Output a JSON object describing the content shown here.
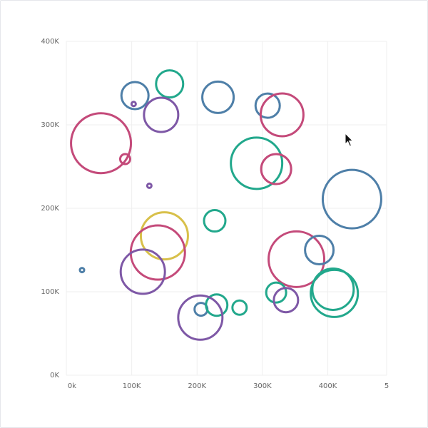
{
  "chart_data": {
    "type": "scatter",
    "title": "",
    "xlabel": "",
    "ylabel": "",
    "xlim": [
      0,
      490000
    ],
    "ylim": [
      0,
      400000
    ],
    "x_ticks": [
      "0k",
      "100K",
      "200K",
      "300K",
      "400K",
      "5"
    ],
    "x_tick_values": [
      0,
      100000,
      200000,
      300000,
      400000,
      490000
    ],
    "y_ticks": [
      "0K",
      "100K",
      "200K",
      "300K",
      "400K"
    ],
    "y_tick_values": [
      0,
      100000,
      200000,
      300000,
      400000
    ],
    "grid": true,
    "colors": {
      "blue": "#4e7fa8",
      "teal": "#22a88c",
      "purple": "#7e58a6",
      "pink": "#c44a7a",
      "yellow": "#d8c04a"
    },
    "points": [
      {
        "x": 105000,
        "y": 335000,
        "size": 19,
        "color": "blue"
      },
      {
        "x": 158000,
        "y": 349000,
        "size": 19,
        "color": "teal"
      },
      {
        "x": 232000,
        "y": 333000,
        "size": 22,
        "color": "blue"
      },
      {
        "x": 145000,
        "y": 312000,
        "size": 24,
        "color": "purple"
      },
      {
        "x": 103000,
        "y": 325000,
        "size": 3,
        "color": "purple"
      },
      {
        "x": 308000,
        "y": 323000,
        "size": 17,
        "color": "blue"
      },
      {
        "x": 330000,
        "y": 312000,
        "size": 30,
        "color": "pink"
      },
      {
        "x": 53000,
        "y": 278000,
        "size": 42,
        "color": "pink"
      },
      {
        "x": 90000,
        "y": 259000,
        "size": 7,
        "color": "pink"
      },
      {
        "x": 127000,
        "y": 227000,
        "size": 3,
        "color": "purple"
      },
      {
        "x": 291000,
        "y": 254000,
        "size": 36,
        "color": "teal"
      },
      {
        "x": 321000,
        "y": 247000,
        "size": 21,
        "color": "pink"
      },
      {
        "x": 437000,
        "y": 211000,
        "size": 41,
        "color": "blue"
      },
      {
        "x": 227000,
        "y": 185000,
        "size": 15,
        "color": "teal"
      },
      {
        "x": 150000,
        "y": 167000,
        "size": 33,
        "color": "yellow"
      },
      {
        "x": 140000,
        "y": 147000,
        "size": 38,
        "color": "pink"
      },
      {
        "x": 117000,
        "y": 124000,
        "size": 31,
        "color": "purple"
      },
      {
        "x": 24000,
        "y": 126000,
        "size": 3,
        "color": "blue"
      },
      {
        "x": 352000,
        "y": 139000,
        "size": 39,
        "color": "pink"
      },
      {
        "x": 387000,
        "y": 150000,
        "size": 20,
        "color": "blue"
      },
      {
        "x": 321000,
        "y": 99000,
        "size": 14,
        "color": "teal"
      },
      {
        "x": 336000,
        "y": 90000,
        "size": 17,
        "color": "purple"
      },
      {
        "x": 408000,
        "y": 103000,
        "size": 29,
        "color": "teal"
      },
      {
        "x": 410000,
        "y": 98000,
        "size": 33,
        "color": "teal"
      },
      {
        "x": 206000,
        "y": 79000,
        "size": 9,
        "color": "blue"
      },
      {
        "x": 230000,
        "y": 84000,
        "size": 15,
        "color": "teal"
      },
      {
        "x": 265000,
        "y": 81000,
        "size": 10,
        "color": "teal"
      },
      {
        "x": 205000,
        "y": 69000,
        "size": 31,
        "color": "purple"
      }
    ]
  }
}
